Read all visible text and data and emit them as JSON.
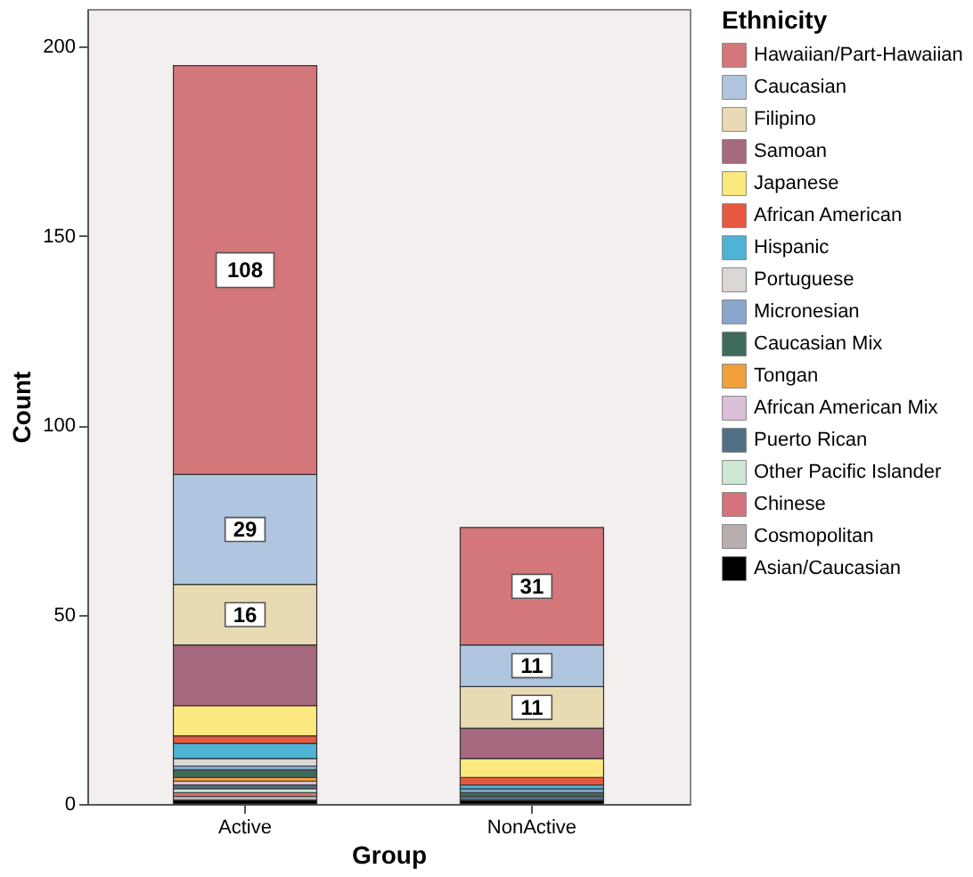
{
  "chart_data": {
    "type": "bar",
    "stacked": true,
    "xlabel": "Group",
    "ylabel": "Count",
    "legend_title": "Ethnicity",
    "legend": "right",
    "grid": false,
    "categories": [
      "Active",
      "NonActive"
    ],
    "ylim": [
      0,
      210
    ],
    "yticks": [
      0,
      50,
      100,
      150,
      200
    ],
    "series": [
      {
        "name": "Asian/Caucasian",
        "color": "#000000",
        "values": [
          1,
          1
        ]
      },
      {
        "name": "Cosmopolitan",
        "color": "#b9aeae",
        "values": [
          1,
          0
        ]
      },
      {
        "name": "Chinese",
        "color": "#d6737a",
        "values": [
          1,
          0
        ]
      },
      {
        "name": "Other Pacific Islander",
        "color": "#cce8d4",
        "values": [
          1,
          0
        ]
      },
      {
        "name": "Puerto Rican",
        "color": "#4f6f85",
        "values": [
          1,
          1
        ]
      },
      {
        "name": "African American Mix",
        "color": "#dcbfd9",
        "values": [
          1,
          0
        ]
      },
      {
        "name": "Tongan",
        "color": "#f2a03a",
        "values": [
          1,
          0
        ]
      },
      {
        "name": "Caucasian Mix",
        "color": "#3e6b5c",
        "values": [
          2,
          1
        ]
      },
      {
        "name": "Micronesian",
        "color": "#89a7cc",
        "values": [
          1,
          1
        ]
      },
      {
        "name": "Portuguese",
        "color": "#dcd8d5",
        "values": [
          2,
          0
        ]
      },
      {
        "name": "Hispanic",
        "color": "#4fb3d6",
        "values": [
          4,
          1
        ]
      },
      {
        "name": "African American",
        "color": "#e8573f",
        "values": [
          2,
          2
        ]
      },
      {
        "name": "Japanese",
        "color": "#fbe97f",
        "values": [
          8,
          5
        ]
      },
      {
        "name": "Samoan",
        "color": "#a6687f",
        "values": [
          16,
          8
        ]
      },
      {
        "name": "Filipino",
        "color": "#e8dbb3",
        "values": [
          16,
          11
        ],
        "value_labels": [
          "16",
          "11"
        ]
      },
      {
        "name": "Caucasian",
        "color": "#b0c6e0",
        "values": [
          29,
          11
        ],
        "value_labels": [
          "29",
          "11"
        ]
      },
      {
        "name": "Hawaiian/Part-Hawaiian",
        "color": "#d4777b",
        "values": [
          108,
          31
        ],
        "value_labels": [
          "108",
          "31"
        ]
      }
    ]
  }
}
